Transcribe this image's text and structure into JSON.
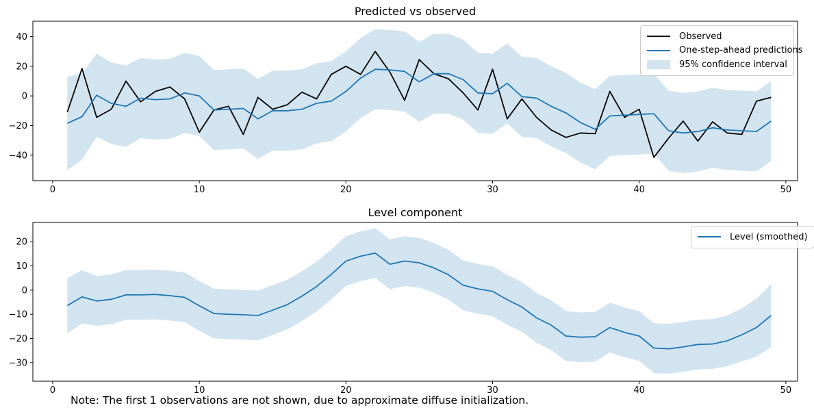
{
  "note": {
    "text": "Note: The first 1 observations are not shown, due to approximate diffuse initialization."
  },
  "colors": {
    "observed": "#000000",
    "prediction": "#1f77b4",
    "level": "#1f77b4",
    "band": "#d2e4f0",
    "spine": "#000000"
  },
  "chart_data": [
    {
      "type": "line",
      "title": "Predicted vs observed",
      "xlabel": "",
      "ylabel": "",
      "x": [
        1,
        2,
        3,
        4,
        5,
        6,
        7,
        8,
        9,
        10,
        11,
        12,
        13,
        14,
        15,
        16,
        17,
        18,
        19,
        20,
        21,
        22,
        23,
        24,
        25,
        26,
        27,
        28,
        29,
        30,
        31,
        32,
        33,
        34,
        35,
        36,
        37,
        38,
        39,
        40,
        41,
        42,
        43,
        44,
        45,
        46,
        47,
        48,
        49
      ],
      "series": [
        {
          "name": "Observed",
          "color": "#000000",
          "values": [
            -11,
            18.5,
            -14.5,
            -9,
            10,
            -4,
            3,
            6,
            -2,
            -24.5,
            -9.5,
            -7,
            -26,
            -1,
            -9,
            -6,
            2.5,
            -2,
            14.5,
            20,
            14.5,
            30,
            16,
            -3,
            24.5,
            15,
            11.5,
            2,
            -9.5,
            18,
            -15.5,
            -2,
            -14.5,
            -23,
            -28,
            -25,
            -25.5,
            3,
            -14.5,
            -9,
            -41.5,
            -28.5,
            -17,
            -30.5,
            -17.5,
            -25,
            -26,
            -3.5,
            -1
          ]
        },
        {
          "name": "One-step-ahead predictions",
          "color": "#1f77b4",
          "values": [
            -18.5,
            -14,
            0.5,
            -5,
            -7,
            -1.5,
            -2.5,
            -2,
            2,
            0,
            -9.5,
            -9,
            -8.5,
            -15.5,
            -10,
            -10,
            -9,
            -5,
            -3.5,
            3,
            12,
            18,
            17.5,
            16.5,
            9.5,
            15,
            15,
            11,
            2,
            1.5,
            8.5,
            -0.5,
            -1.5,
            -7,
            -11.5,
            -18,
            -22.5,
            -13.5,
            -13,
            -12.5,
            -12,
            -23.5,
            -25,
            -24,
            -21.5,
            -23,
            -23.5,
            -24,
            -17
          ]
        }
      ],
      "band": {
        "name": "95% confidence interval",
        "color": "#d2e4f0",
        "upper": [
          13,
          15,
          28.5,
          22.5,
          20.5,
          25.5,
          24.5,
          25,
          29,
          27,
          17.5,
          18,
          18.5,
          11.5,
          17,
          17,
          18,
          22,
          23.5,
          30,
          39,
          45,
          44.5,
          43.5,
          36.5,
          42,
          42,
          38,
          29,
          28.5,
          35.5,
          26.5,
          25.5,
          20,
          15.5,
          9,
          4.5,
          13.5,
          14,
          14.5,
          15,
          3.5,
          2,
          3,
          5.5,
          4,
          3.5,
          3,
          10
        ],
        "lower": [
          -50,
          -43,
          -27.5,
          -32.5,
          -34.5,
          -28.5,
          -29.5,
          -29,
          -25,
          -27,
          -36.5,
          -36,
          -35.5,
          -42.5,
          -37,
          -37,
          -36,
          -32,
          -30.5,
          -24,
          -15,
          -9,
          -9.5,
          -10.5,
          -17.5,
          -12,
          -12,
          -16,
          -25,
          -25.5,
          -18.5,
          -27.5,
          -28.5,
          -34,
          -38.5,
          -45,
          -49.5,
          -40.5,
          -40,
          -39.5,
          -39,
          -50.5,
          -52,
          -51,
          -48.5,
          -50,
          -50.5,
          -51,
          -44
        ]
      },
      "xticks": [
        0,
        10,
        20,
        30,
        40,
        50
      ],
      "yticks": [
        40,
        20,
        0,
        -20,
        -40
      ],
      "xlim": [
        -1.35,
        50.8
      ],
      "ylim": [
        -57.2,
        50.4
      ],
      "grid": false,
      "legend_position": "top-right"
    },
    {
      "type": "line",
      "title": "Level component",
      "xlabel": "",
      "ylabel": "",
      "x": [
        1,
        2,
        3,
        4,
        5,
        6,
        7,
        8,
        9,
        10,
        11,
        12,
        13,
        14,
        15,
        16,
        17,
        18,
        19,
        20,
        21,
        22,
        23,
        24,
        25,
        26,
        27,
        28,
        29,
        30,
        31,
        32,
        33,
        34,
        35,
        36,
        37,
        38,
        39,
        40,
        41,
        42,
        43,
        44,
        45,
        46,
        47,
        48,
        49
      ],
      "series": [
        {
          "name": "Level (smoothed)",
          "color": "#1f77b4",
          "values": [
            -6.4,
            -2.8,
            -4.5,
            -3.8,
            -2,
            -2,
            -1.8,
            -2.3,
            -3,
            -6.5,
            -9.7,
            -10,
            -10.2,
            -10.5,
            -8.3,
            -6,
            -2.5,
            1.5,
            6.5,
            12,
            14,
            15.3,
            10.7,
            12,
            11.3,
            9.2,
            6.3,
            2,
            0.5,
            -0.5,
            -4,
            -7,
            -11.5,
            -14.5,
            -19,
            -19.5,
            -19.3,
            -15.5,
            -17.5,
            -19,
            -24,
            -24.3,
            -23.5,
            -22.5,
            -22.3,
            -21,
            -18.5,
            -15.5,
            -10.5
          ]
        }
      ],
      "band": {
        "name": "95% confidence interval",
        "color": "#d2e4f0",
        "upper": [
          5,
          8.2,
          5.8,
          6.5,
          8.3,
          8.3,
          8.5,
          8,
          7.3,
          3.8,
          0.6,
          0.3,
          0.1,
          -0.2,
          2,
          4.3,
          7.8,
          11.8,
          16.8,
          22.3,
          24.3,
          25.6,
          21,
          22.3,
          21.6,
          19.5,
          16.6,
          12.3,
          10.8,
          9.8,
          6.3,
          3.3,
          -1.2,
          -4.2,
          -8.7,
          -9.2,
          -9,
          -5.2,
          -7.2,
          -8.7,
          -13.7,
          -14,
          -13.2,
          -12.2,
          -12,
          -10.5,
          -7.5,
          -3.5,
          2.5
        ],
        "lower": [
          -17.9,
          -13.8,
          -14.8,
          -14.1,
          -12.3,
          -12.3,
          -12.1,
          -12.6,
          -13.3,
          -16.8,
          -20,
          -20.3,
          -20.5,
          -20.8,
          -18.6,
          -16.3,
          -12.8,
          -8.8,
          -3.8,
          1.7,
          3.7,
          5,
          0.4,
          1.7,
          1,
          -1.1,
          -4,
          -8.3,
          -9.8,
          -10.8,
          -14.3,
          -17.3,
          -21.8,
          -24.8,
          -29.3,
          -29.8,
          -29.6,
          -25.8,
          -27.8,
          -29.3,
          -34.3,
          -34.6,
          -33.8,
          -32.8,
          -32.6,
          -31.5,
          -29.5,
          -27.5,
          -23.5
        ]
      },
      "xticks": [
        0,
        10,
        20,
        30,
        40,
        50
      ],
      "yticks": [
        20,
        10,
        0,
        -10,
        -20,
        -30
      ],
      "xlim": [
        -1.35,
        50.8
      ],
      "ylim": [
        -37.7,
        28.0
      ],
      "grid": false,
      "legend_position": "top-right"
    }
  ]
}
